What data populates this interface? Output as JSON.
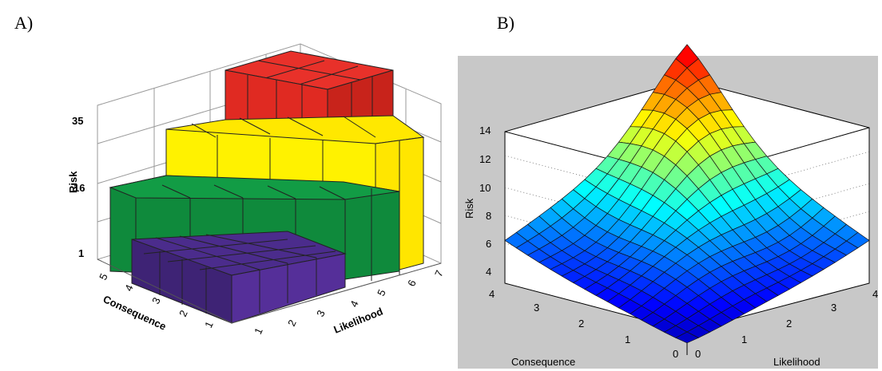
{
  "panels": {
    "a": "A)",
    "b": "B)"
  },
  "chart_data": [
    {
      "type": "bar",
      "subtype": "3d-stepped-bars",
      "zlabel": "Risk",
      "xlabel": "Likelihood",
      "ylabel": "Consequence",
      "x_ticks": [
        "1",
        "2",
        "3",
        "4",
        "5",
        "6",
        "7"
      ],
      "y_ticks": [
        "1",
        "2",
        "3",
        "4",
        "5"
      ],
      "z_ticks": [
        "1",
        "16",
        "35"
      ],
      "tiers": [
        {
          "color": "#4b2c8c",
          "value": 1
        },
        {
          "color": "#0f8a3c",
          "value": 16
        },
        {
          "color": "#ffeb00",
          "value": 35
        },
        {
          "color": "#e8312a",
          "value": 50
        }
      ],
      "grid": true
    },
    {
      "type": "surface",
      "zlabel": "Risk",
      "xlabel": "Likelihood",
      "ylabel": "Consequence",
      "x_ticks": [
        "0",
        "1",
        "2",
        "3",
        "4"
      ],
      "y_ticks": [
        "0",
        "1",
        "2",
        "3",
        "4"
      ],
      "z_ticks": [
        "4",
        "6",
        "8",
        "10",
        "12",
        "14"
      ],
      "zlim": [
        3,
        15
      ],
      "colormap": "jet",
      "grid": true
    }
  ]
}
